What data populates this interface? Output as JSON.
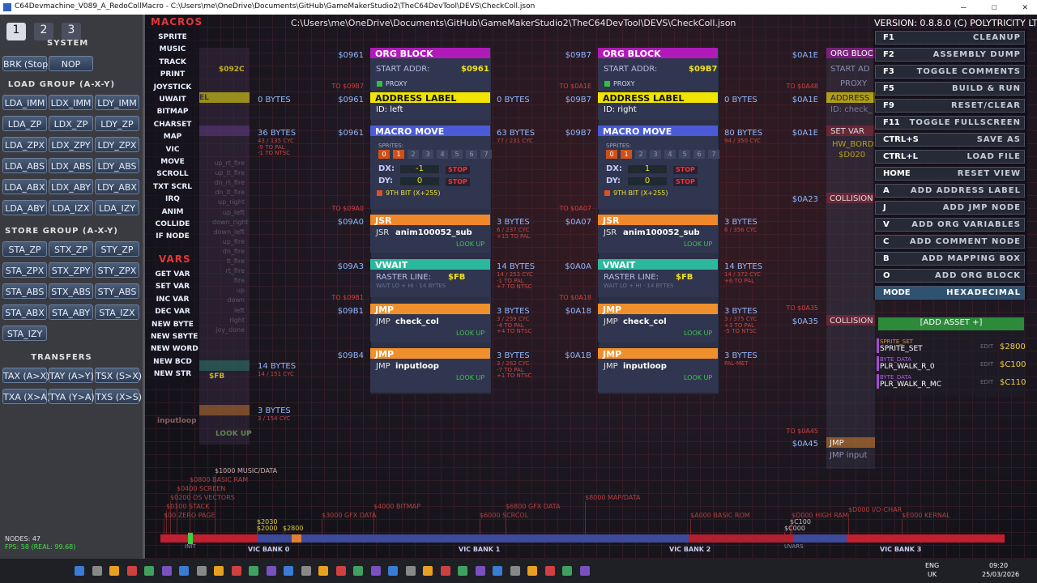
{
  "window": {
    "title": "C64Devmachine_V089_A_RedoCollMacro - C:\\Users\\me\\OneDrive\\Documents\\GitHub\\GameMakerStudio2\\TheC64DevTool\\DEVS\\CheckColl.json"
  },
  "header": {
    "path": "C:\\Users\\me\\OneDrive\\Documents\\GitHub\\GameMakerStudio2\\TheC64DevTool\\DEVS\\CheckColl.json",
    "version": "VERSION: 0.8.8.0 (C) POLYTRICITY LTD"
  },
  "left_panel": {
    "tabs": [
      "1",
      "2",
      "3"
    ],
    "system": "SYSTEM",
    "system_buttons": [
      "BRK (Stop)",
      "NOP"
    ],
    "groups": [
      {
        "title": "LOAD GROUP (A-X-Y)",
        "rows": [
          [
            "LDA_IMM",
            "LDX_IMM",
            "LDY_IMM"
          ],
          [
            "LDA_ZP",
            "LDX_ZP",
            "LDY_ZP"
          ],
          [
            "LDA_ZPX",
            "LDX_ZPY",
            "LDY_ZPX"
          ],
          [
            "LDA_ABS",
            "LDX_ABS",
            "LDY_ABS"
          ],
          [
            "LDA_ABX",
            "LDX_ABY",
            "LDY_ABX"
          ],
          [
            "LDA_ABY",
            "LDA_IZX",
            "LDA_IZY"
          ]
        ]
      },
      {
        "title": "STORE GROUP (A-X-Y)",
        "rows": [
          [
            "STA_ZP",
            "STX_ZP",
            "STY_ZP"
          ],
          [
            "STA_ZPX",
            "STX_ZPY",
            "STY_ZPX"
          ],
          [
            "STA_ABS",
            "STX_ABS",
            "STY_ABS"
          ],
          [
            "STA_ABX",
            "STA_ABY",
            "STA_IZX"
          ],
          [
            "STA_IZY"
          ]
        ]
      },
      {
        "title": "TRANSFERS",
        "rows": [
          [
            "TAX (A>X)",
            "TAY (A>Y)",
            "TSX (S>X)"
          ],
          [
            "TXA (X>A)",
            "TYA (Y>A)",
            "TXS (X>S)"
          ]
        ]
      }
    ]
  },
  "macros": {
    "title": "MACROS",
    "items": [
      "SPRITE",
      "MUSIC",
      "TRACK",
      "PRINT",
      "JOYSTICK",
      "UWAIT",
      "BITMAP",
      "CHARSET",
      "MAP",
      "VIC",
      "MOVE",
      "SCROLL",
      "TXT SCRL",
      "IRQ",
      "ANIM",
      "COLLIDE",
      "IF NODE"
    ]
  },
  "vars": {
    "title": "VARS",
    "items": [
      "GET VAR",
      "SET VAR",
      "INC VAR",
      "DEC VAR",
      "NEW BYTE",
      "NEW SBYTE",
      "NEW WORD",
      "NEW BCD",
      "NEW STR"
    ]
  },
  "partial_left": {
    "texts": [
      "$092C",
      "EL",
      "$FB",
      "inputloop",
      "LOOK UP"
    ],
    "labels": [
      "up_rt_fire",
      "up_lt_fire",
      "dn_rt_fire",
      "dn_lt_fire",
      "up_right",
      "up_left",
      "down_right",
      "down_left",
      "up_fire",
      "dn_fire",
      "lt_fire",
      "rt_fire",
      "fire",
      "up",
      "down",
      "left",
      "right",
      "joy_done"
    ],
    "stats": [
      {
        "title": "0 BYTES",
        "detail": []
      },
      {
        "title": "36 BYTES",
        "detail": [
          "43 / 135 CYC",
          "-9 TO PAL",
          "-1 TO NTSC"
        ]
      },
      {
        "title": "14 BYTES",
        "detail": [
          "14 / 151 CYC"
        ]
      },
      {
        "title": "3 BYTES",
        "detail": [
          "3 / 154 CYC"
        ]
      }
    ]
  },
  "columns": [
    {
      "addresses": [
        "$0961",
        "TO $09B7",
        "$0961",
        "$0961",
        "TO $09A0",
        "$09A0",
        "$09A3",
        "TO $09B1",
        "$09B1",
        "$09B4"
      ],
      "org": {
        "title": "ORG BLOCK",
        "start_label": "START ADDR:",
        "start": "$0961",
        "proxy": "PROXY"
      },
      "label": {
        "title": "ADDRESS LABEL",
        "id": "ID: left"
      },
      "move": {
        "title": "MACRO MOVE",
        "sprites_label": "SPRITES:",
        "sprites": [
          "0",
          "1",
          "2",
          "3",
          "4",
          "5",
          "6",
          "7"
        ],
        "dx_label": "DX:",
        "dx": "-1",
        "dy_label": "DY:",
        "dy": "0",
        "stop": "STOP",
        "ninth": "9TH BIT (X+255)"
      },
      "jsr": {
        "title": "JSR",
        "op": "JSR",
        "target": "anim100052_sub",
        "lookup": "LOOK UP"
      },
      "vwait": {
        "title": "VWAIT",
        "raster_label": "RASTER LINE:",
        "raster": "$FB",
        "note": "WAIT LO + HI · 14 BYTES"
      },
      "jmp1": {
        "title": "JMP",
        "op": "JMP",
        "target": "check_col",
        "lookup": "LOOK UP"
      },
      "jmp2": {
        "title": "JMP",
        "op": "JMP",
        "target": "inputloop",
        "lookup": "LOOK UP"
      },
      "stats": [
        {
          "title": "0 BYTES",
          "detail": []
        },
        {
          "title": "63 BYTES",
          "detail": [
            "77 / 231 CYC"
          ]
        },
        {
          "title": "3 BYTES",
          "detail": [
            "6 / 237 CYC",
            "+15 TO PAL"
          ]
        },
        {
          "title": "14 BYTES",
          "detail": [
            "14 / 253 CYC",
            "-1 TO PAL",
            "+7 TO NTSC"
          ]
        },
        {
          "title": "3 BYTES",
          "detail": [
            "3 / 259 CYC",
            "-4 TO PAL",
            "+4 TO NTSC"
          ]
        },
        {
          "title": "3 BYTES",
          "detail": [
            "3 / 262 CYC",
            "-7 TO PAL",
            "+1 TO NTSC"
          ]
        }
      ]
    },
    {
      "addresses": [
        "$09B7",
        "TO $0A1E",
        "$09B7",
        "$09B7",
        "TO $0A07",
        "$0A07",
        "$0A0A",
        "TO $0A18",
        "$0A18",
        "$0A1B"
      ],
      "org": {
        "title": "ORG BLOCK",
        "start_label": "START ADDR:",
        "start": "$09B7",
        "proxy": "PROXY"
      },
      "label": {
        "title": "ADDRESS LABEL",
        "id": "ID: right"
      },
      "move": {
        "title": "MACRO MOVE",
        "sprites_label": "SPRITES:",
        "sprites": [
          "0",
          "1",
          "2",
          "3",
          "4",
          "5",
          "6",
          "7"
        ],
        "dx_label": "DX:",
        "dx": "1",
        "dy_label": "DY:",
        "dy": "0",
        "stop": "STOP",
        "ninth": "9TH BIT (X+255)"
      },
      "jsr": {
        "title": "JSR",
        "op": "JSR",
        "target": "anim100052_sub",
        "lookup": "LOOK UP"
      },
      "vwait": {
        "title": "VWAIT",
        "raster_label": "RASTER LINE:",
        "raster": "$FB",
        "note": "WAIT LO + HI · 14 BYTES"
      },
      "jmp1": {
        "title": "JMP",
        "op": "JMP",
        "target": "check_col",
        "lookup": "LOOK UP"
      },
      "jmp2": {
        "title": "JMP",
        "op": "JMP",
        "target": "inputloop",
        "lookup": "LOOK UP"
      },
      "stats": [
        {
          "title": "0 BYTES",
          "detail": []
        },
        {
          "title": "80 BYTES",
          "detail": [
            "94 / 350 CYC"
          ]
        },
        {
          "title": "3 BYTES",
          "detail": [
            "6 / 356 CYC"
          ]
        },
        {
          "title": "14 BYTES",
          "detail": [
            "14 / 372 CYC",
            "+6 TO PAL"
          ]
        },
        {
          "title": "3 BYTES",
          "detail": [
            "3 / 375 CYC",
            "+3 TO PAL",
            "-5 TO NTSC"
          ]
        },
        {
          "title": "3 BYTES",
          "detail": [
            "PAL-MET"
          ]
        }
      ]
    }
  ],
  "partial_right": {
    "addresses": [
      "$0A1E",
      "TO $0A48",
      "$0A1E",
      "$0A1E",
      "$0A23",
      "TO $0A35",
      "$0A35",
      "TO $0A45",
      "$0A45"
    ],
    "texts": [
      "ORG BLOC",
      "START AD",
      "PROXY",
      "ADDRESS",
      "ID: check_",
      "SET VAR",
      "HW_BORD",
      "$D020",
      "COLLISION",
      "COLLISION",
      "JMP",
      "JMP input"
    ]
  },
  "shortcuts": [
    {
      "key": "F1",
      "action": "CLEANUP"
    },
    {
      "key": "F2",
      "action": "ASSEMBLY DUMP"
    },
    {
      "key": "F3",
      "action": "TOGGLE COMMENTS"
    },
    {
      "key": "F5",
      "action": "BUILD & RUN"
    },
    {
      "key": "F9",
      "action": "RESET/CLEAR"
    },
    {
      "key": "F11",
      "action": "TOGGLE FULLSCREEN"
    },
    {
      "key": "CTRL+S",
      "action": "SAVE AS"
    },
    {
      "key": "CTRL+L",
      "action": "LOAD FILE"
    },
    {
      "key": "HOME",
      "action": "RESET VIEW"
    },
    {
      "key": "A",
      "action": "ADD ADDRESS LABEL"
    },
    {
      "key": "J",
      "action": "ADD JMP NODE"
    },
    {
      "key": "V",
      "action": "ADD ORG VARIABLES"
    },
    {
      "key": "C",
      "action": "ADD COMMENT NODE"
    },
    {
      "key": "B",
      "action": "ADD MAPPING BOX"
    },
    {
      "key": "O",
      "action": "ADD ORG BLOCK"
    },
    {
      "key": "MODE",
      "action": "HEXADECIMAL"
    }
  ],
  "assets": {
    "add": "[ADD ASSET +]",
    "edit": "EDIT",
    "items": [
      {
        "type": "SPRITE_SET",
        "name": "SPRITE_SET",
        "address": "$2800"
      },
      {
        "type": "BYTE_DATA",
        "name": "PLR_WALK_R_0",
        "address": "$C100"
      },
      {
        "type": "BYTE_DATA",
        "name": "PLR_WALK_R_MC",
        "address": "$C110"
      }
    ]
  },
  "memory_map": {
    "labels": [
      "$1000 MUSIC/DATA",
      "$0800 BASIC RAM",
      "$0400 SCREEN",
      "$0200 OS VECTORS",
      "$0100 STACK",
      "$00 ZERO PAGE",
      "$2030",
      "$2000",
      "$2800",
      "$3000 GFX DATA",
      "$4000 BITMAP",
      "$6000 SCRCOL",
      "$6800 GFX DATA",
      "$8000 MAP/DATA",
      "$A000 BASIC ROM",
      "$C100",
      "$C000",
      "$D000 HIGH RAM",
      "$D000 I/O-CHAR",
      "$E000 KERNAL"
    ],
    "banks": [
      "VIC BANK 0",
      "VIC BANK 1",
      "VIC BANK 2",
      "VIC BANK 3"
    ],
    "markers": [
      "INIT",
      "UVARS"
    ]
  },
  "status": {
    "nodes": "NODES: 47",
    "fps": "FPS: 58 (REAL: 99.68)"
  },
  "taskbar": {
    "lang": "ENG",
    "region": "UK",
    "time": "09:20",
    "date": "25/03/2026"
  }
}
